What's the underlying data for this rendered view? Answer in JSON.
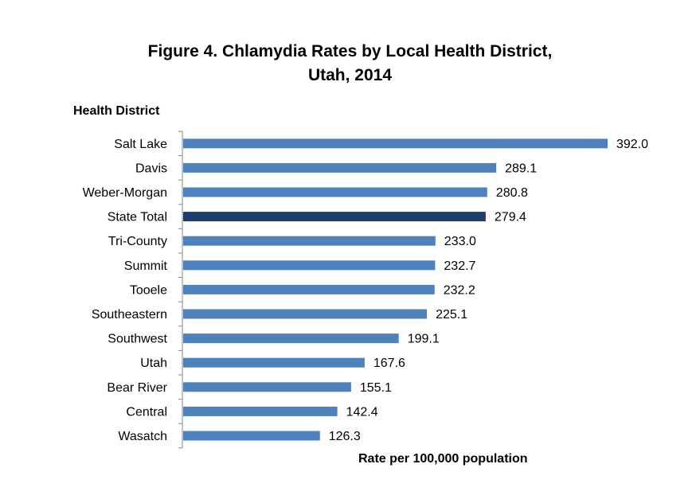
{
  "chart_data": {
    "type": "bar",
    "orientation": "horizontal",
    "title_line1": "Figure 4. Chlamydia Rates by Local Health District,",
    "title_line2": "Utah, 2014",
    "ylabel": "Health District",
    "xlabel": "Rate per 100,000 population",
    "categories": [
      "Salt Lake",
      "Davis",
      "Weber-Morgan",
      "State Total",
      "Tri-County",
      "Summit",
      "Tooele",
      "Southeastern",
      "Southwest",
      "Utah",
      "Bear River",
      "Central",
      "Wasatch"
    ],
    "values": [
      392.0,
      289.1,
      280.8,
      279.4,
      233.0,
      232.7,
      232.2,
      225.1,
      199.1,
      167.6,
      155.1,
      142.4,
      126.3
    ],
    "value_labels": [
      "392.0",
      "289.1",
      "280.8",
      "279.4",
      "233.0",
      "232.7",
      "232.2",
      "225.1",
      "199.1",
      "167.6",
      "155.1",
      "142.4",
      "126.3"
    ],
    "highlight_category": "State Total",
    "colors": {
      "bar": "#4f81bd",
      "highlight": "#1f3d6b",
      "axis": "#868686"
    },
    "xlim": [
      0,
      400
    ]
  }
}
